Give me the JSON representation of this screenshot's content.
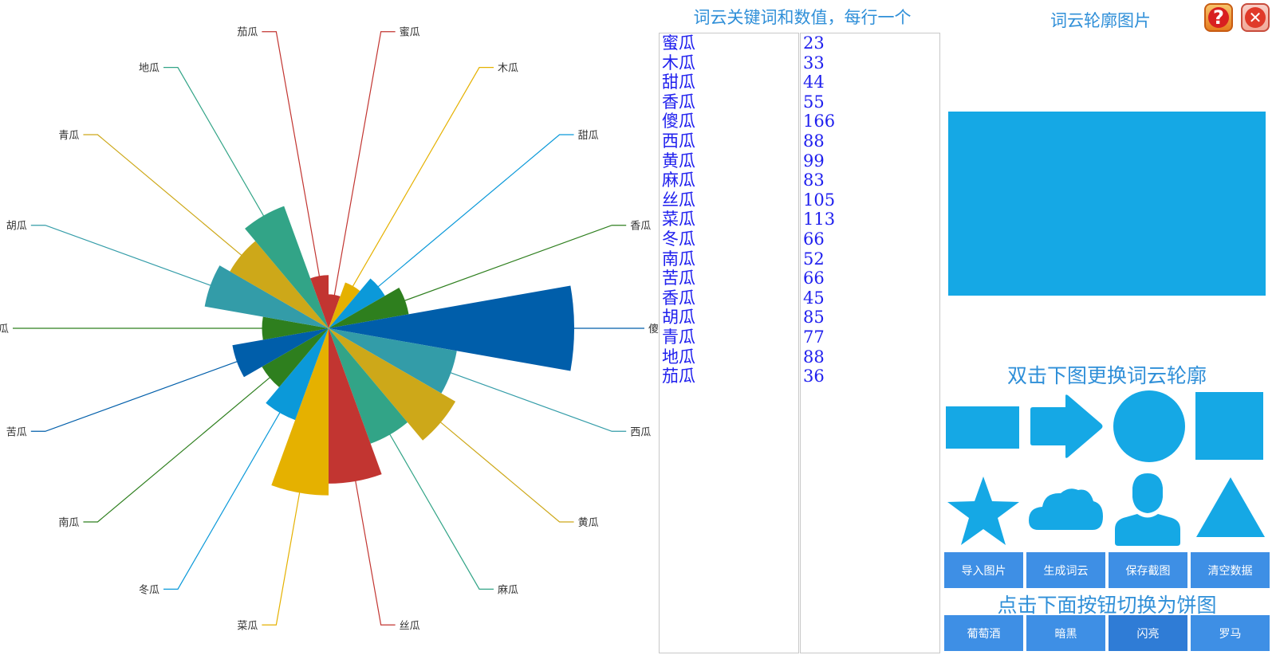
{
  "chart_data": {
    "type": "rose",
    "categories": [
      "蜜瓜",
      "木瓜",
      "甜瓜",
      "香瓜",
      "傻瓜",
      "西瓜",
      "黄瓜",
      "麻瓜",
      "丝瓜",
      "菜瓜",
      "冬瓜",
      "南瓜",
      "苦瓜",
      "香瓜",
      "胡瓜",
      "青瓜",
      "地瓜",
      "茄瓜"
    ],
    "values": [
      23,
      33,
      44,
      55,
      166,
      88,
      99,
      83,
      105,
      113,
      66,
      52,
      66,
      45,
      85,
      77,
      88,
      36
    ],
    "colors": [
      "#c23531",
      "#e5b100",
      "#0b99d9",
      "#2e7f1e",
      "#005eaa",
      "#339ca8",
      "#cda819",
      "#32a487",
      "#c23531",
      "#e5b100",
      "#0b99d9",
      "#2e7f1e",
      "#005eaa",
      "#2e7f1e",
      "#339ca8",
      "#cda819",
      "#32a487",
      "#c23531"
    ],
    "start": "top",
    "direction": "clockwise",
    "label_lines": true
  },
  "panel": {
    "keywords_title": "词云关键词和数值，每行一个",
    "outline_title": "词云轮廓图片",
    "help_label": "?",
    "close_label": "✕",
    "double_click_title": "双击下图更换词云轮廓",
    "switch_title": "点击下面按钮切换为饼图",
    "shape_color": "#15a8e5",
    "shapes": [
      "rectangle",
      "arrow",
      "circle",
      "square",
      "star",
      "cloud",
      "person",
      "triangle"
    ],
    "actions": [
      "导入图片",
      "生成词云",
      "保存截图",
      "清空数据"
    ],
    "themes": [
      "葡萄酒",
      "暗黑",
      "闪亮",
      "罗马"
    ],
    "active_theme": "闪亮"
  }
}
